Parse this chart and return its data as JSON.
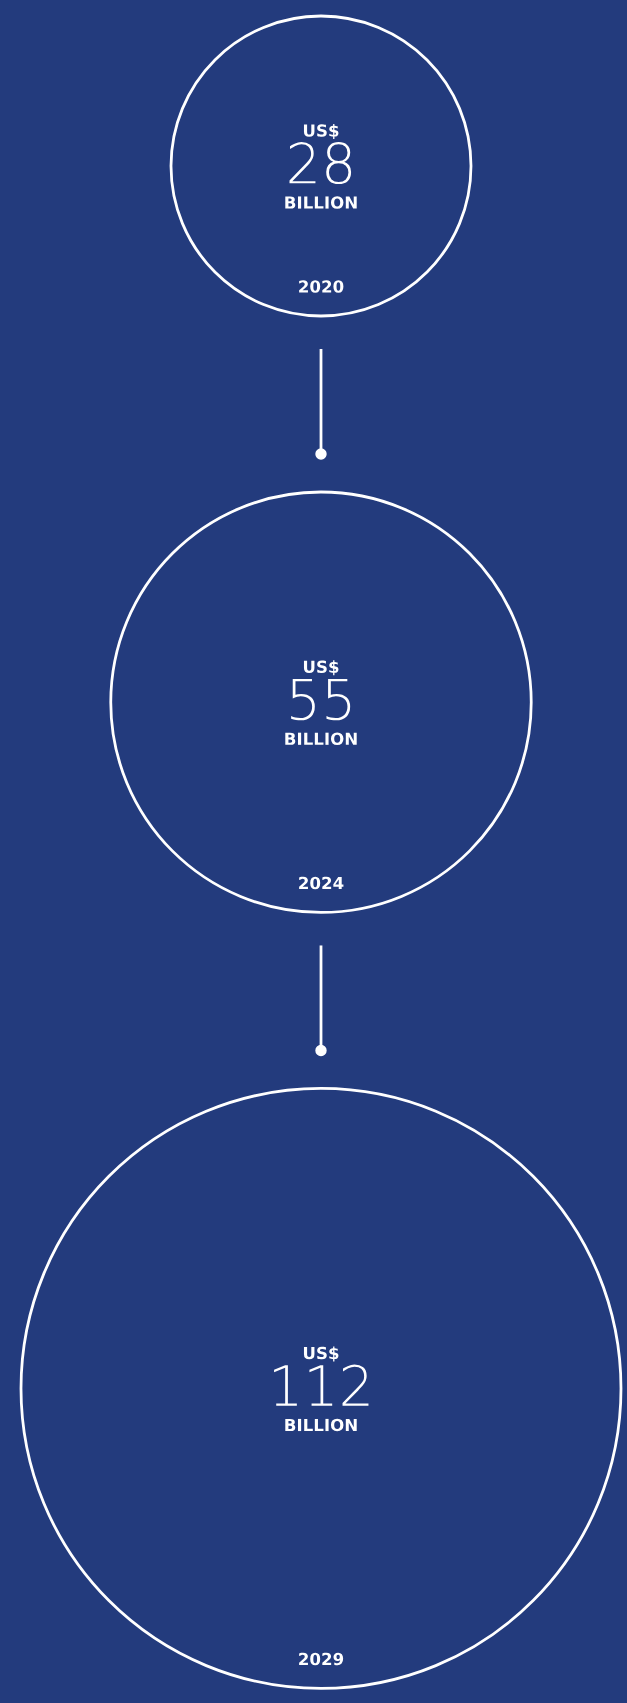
{
  "chart_data": {
    "type": "other",
    "categories": [
      "2020",
      "2024",
      "2029"
    ],
    "values": [
      28,
      55,
      112
    ],
    "annotations": [
      "US$",
      "BILLION"
    ],
    "color": "#ffffff",
    "data_labels": true
  }
}
